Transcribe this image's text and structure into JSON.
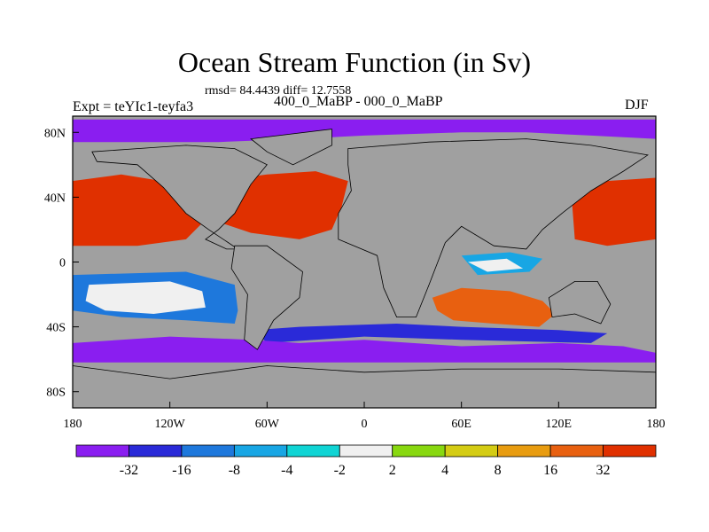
{
  "chart_data": {
    "type": "heatmap",
    "title": "Ocean Stream Function (in Sv)",
    "subtitle": "rmsd= 84.4439 diff= 12.7558",
    "left_label": "Expt = teYIc1-teyfa3",
    "center_label": "400_0_MaBP - 000_0_MaBP",
    "right_label": "DJF",
    "x_ticks": [
      {
        "value": -180,
        "label": "180"
      },
      {
        "value": -120,
        "label": "120W"
      },
      {
        "value": -60,
        "label": "60W"
      },
      {
        "value": 0,
        "label": "0"
      },
      {
        "value": 60,
        "label": "60E"
      },
      {
        "value": 120,
        "label": "120E"
      },
      {
        "value": 180,
        "label": "180"
      }
    ],
    "y_ticks": [
      {
        "value": 80,
        "label": "80N"
      },
      {
        "value": 40,
        "label": "40N"
      },
      {
        "value": 0,
        "label": "0"
      },
      {
        "value": -40,
        "label": "40S"
      },
      {
        "value": -80,
        "label": "80S"
      }
    ],
    "xlim": [
      -180,
      180
    ],
    "ylim": [
      -90,
      90
    ],
    "land_color": "#a0a0a0",
    "colorbar": {
      "labels": [
        "-32",
        "-16",
        "-8",
        "-4",
        "-2",
        "2",
        "4",
        "8",
        "16",
        "32"
      ],
      "colors": [
        "#8a1ef0",
        "#2a2ad8",
        "#1e78dc",
        "#18a6e4",
        "#10d4d4",
        "#f0f0f0",
        "#88d810",
        "#d4cc14",
        "#e89c10",
        "#e86010",
        "#e03000"
      ]
    },
    "regions": [
      {
        "color": "#8a1ef0",
        "points": [
          [
            -180,
            74
          ],
          [
            -90,
            74
          ],
          [
            -40,
            76
          ],
          [
            0,
            78
          ],
          [
            60,
            80
          ],
          [
            100,
            80
          ],
          [
            140,
            78
          ],
          [
            180,
            76
          ],
          [
            180,
            88
          ],
          [
            -180,
            88
          ]
        ]
      },
      {
        "color": "#e03000",
        "points": [
          [
            -180,
            50
          ],
          [
            -150,
            54
          ],
          [
            -125,
            50
          ],
          [
            -110,
            36
          ],
          [
            -100,
            24
          ],
          [
            -110,
            14
          ],
          [
            -140,
            10
          ],
          [
            -180,
            10
          ]
        ]
      },
      {
        "color": "#e03000",
        "points": [
          [
            -90,
            50
          ],
          [
            -60,
            54
          ],
          [
            -30,
            56
          ],
          [
            -10,
            50
          ],
          [
            -14,
            34
          ],
          [
            -20,
            20
          ],
          [
            -40,
            14
          ],
          [
            -70,
            18
          ],
          [
            -88,
            24
          ]
        ]
      },
      {
        "color": "#e03000",
        "points": [
          [
            128,
            40
          ],
          [
            150,
            50
          ],
          [
            180,
            52
          ],
          [
            180,
            14
          ],
          [
            150,
            10
          ],
          [
            130,
            14
          ]
        ]
      },
      {
        "color": "#e86010",
        "points": [
          [
            42,
            -22
          ],
          [
            60,
            -16
          ],
          [
            90,
            -18
          ],
          [
            110,
            -24
          ],
          [
            118,
            -32
          ],
          [
            108,
            -40
          ],
          [
            80,
            -38
          ],
          [
            55,
            -36
          ],
          [
            45,
            -30
          ]
        ]
      },
      {
        "color": "#1e78dc",
        "points": [
          [
            -180,
            -8
          ],
          [
            -110,
            -6
          ],
          [
            -80,
            -14
          ],
          [
            -78,
            -30
          ],
          [
            -80,
            -38
          ],
          [
            -110,
            -36
          ],
          [
            -150,
            -34
          ],
          [
            -180,
            -30
          ]
        ]
      },
      {
        "color": "#f0f0f0",
        "points": [
          [
            -170,
            -14
          ],
          [
            -120,
            -12
          ],
          [
            -100,
            -18
          ],
          [
            -98,
            -28
          ],
          [
            -130,
            -32
          ],
          [
            -160,
            -30
          ],
          [
            -172,
            -24
          ]
        ]
      },
      {
        "color": "#2a2ad8",
        "points": [
          [
            -68,
            -42
          ],
          [
            -40,
            -40
          ],
          [
            20,
            -38
          ],
          [
            60,
            -40
          ],
          [
            120,
            -42
          ],
          [
            150,
            -44
          ],
          [
            140,
            -50
          ],
          [
            60,
            -48
          ],
          [
            0,
            -46
          ],
          [
            -60,
            -50
          ]
        ]
      },
      {
        "color": "#8a1ef0",
        "points": [
          [
            -180,
            -50
          ],
          [
            -120,
            -46
          ],
          [
            -70,
            -48
          ],
          [
            -40,
            -50
          ],
          [
            0,
            -48
          ],
          [
            60,
            -52
          ],
          [
            120,
            -50
          ],
          [
            160,
            -52
          ],
          [
            180,
            -56
          ],
          [
            180,
            -62
          ],
          [
            -180,
            -62
          ]
        ]
      },
      {
        "color": "#18a6e4",
        "points": [
          [
            60,
            4
          ],
          [
            90,
            6
          ],
          [
            110,
            2
          ],
          [
            102,
            -6
          ],
          [
            70,
            -8
          ]
        ]
      },
      {
        "color": "#f0f0f0",
        "points": [
          [
            64,
            0
          ],
          [
            88,
            2
          ],
          [
            98,
            -4
          ],
          [
            76,
            -6
          ]
        ]
      }
    ],
    "land": [
      {
        "name": "north-america",
        "points": [
          [
            -168,
            68
          ],
          [
            -140,
            70
          ],
          [
            -110,
            72
          ],
          [
            -80,
            70
          ],
          [
            -60,
            60
          ],
          [
            -70,
            48
          ],
          [
            -80,
            30
          ],
          [
            -90,
            20
          ],
          [
            -98,
            14
          ],
          [
            -85,
            8
          ],
          [
            -78,
            8
          ],
          [
            -96,
            20
          ],
          [
            -110,
            30
          ],
          [
            -124,
            46
          ],
          [
            -140,
            60
          ],
          [
            -165,
            62
          ]
        ]
      },
      {
        "name": "south-america",
        "points": [
          [
            -80,
            10
          ],
          [
            -60,
            10
          ],
          [
            -38,
            -6
          ],
          [
            -40,
            -22
          ],
          [
            -56,
            -36
          ],
          [
            -66,
            -54
          ],
          [
            -74,
            -48
          ],
          [
            -72,
            -20
          ],
          [
            -82,
            -4
          ]
        ]
      },
      {
        "name": "eurasia-africa",
        "points": [
          [
            -10,
            70
          ],
          [
            40,
            74
          ],
          [
            100,
            76
          ],
          [
            140,
            72
          ],
          [
            175,
            66
          ],
          [
            160,
            56
          ],
          [
            140,
            44
          ],
          [
            122,
            30
          ],
          [
            110,
            20
          ],
          [
            100,
            8
          ],
          [
            80,
            10
          ],
          [
            60,
            22
          ],
          [
            50,
            12
          ],
          [
            40,
            -14
          ],
          [
            32,
            -34
          ],
          [
            20,
            -34
          ],
          [
            12,
            -16
          ],
          [
            8,
            4
          ],
          [
            -16,
            14
          ],
          [
            -16,
            30
          ],
          [
            -8,
            44
          ],
          [
            -10,
            60
          ]
        ]
      },
      {
        "name": "greenland",
        "points": [
          [
            -70,
            76
          ],
          [
            -20,
            82
          ],
          [
            -20,
            72
          ],
          [
            -44,
            60
          ],
          [
            -60,
            68
          ]
        ]
      },
      {
        "name": "australia",
        "points": [
          [
            114,
            -22
          ],
          [
            130,
            -12
          ],
          [
            144,
            -12
          ],
          [
            152,
            -26
          ],
          [
            146,
            -38
          ],
          [
            130,
            -32
          ],
          [
            116,
            -34
          ]
        ]
      },
      {
        "name": "antarctica",
        "points": [
          [
            -180,
            -64
          ],
          [
            -120,
            -72
          ],
          [
            -60,
            -64
          ],
          [
            0,
            -68
          ],
          [
            60,
            -66
          ],
          [
            120,
            -66
          ],
          [
            180,
            -68
          ],
          [
            180,
            -90
          ],
          [
            -180,
            -90
          ]
        ]
      }
    ]
  }
}
